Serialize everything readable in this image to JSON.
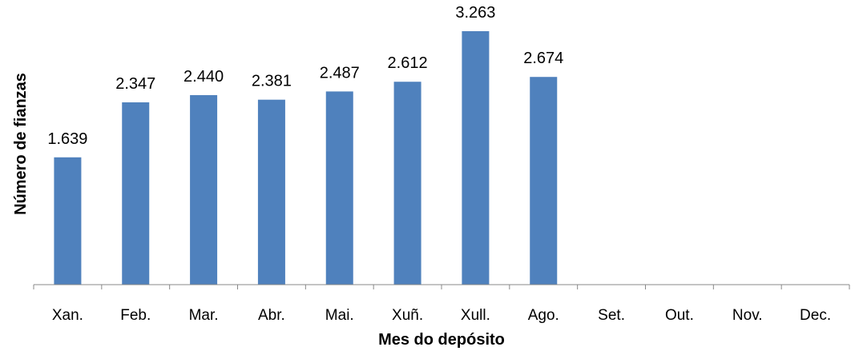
{
  "chart_data": {
    "type": "bar",
    "categories": [
      "Xan.",
      "Feb.",
      "Mar.",
      "Abr.",
      "Mai.",
      "Xuñ.",
      "Xull.",
      "Ago.",
      "Set.",
      "Out.",
      "Nov.",
      "Dec."
    ],
    "values": [
      1639,
      2347,
      2440,
      2381,
      2487,
      2612,
      3263,
      2674,
      null,
      null,
      null,
      null
    ],
    "value_labels": [
      "1.639",
      "2.347",
      "2.440",
      "2.381",
      "2.487",
      "2.612",
      "3.263",
      "2.674",
      "",
      "",
      "",
      ""
    ],
    "title": "",
    "xlabel": "Mes do depósito",
    "ylabel": "Número de fianzas",
    "ylim": [
      0,
      3500
    ],
    "grid": false,
    "legend": "none",
    "bar_color": "#4f81bd"
  }
}
